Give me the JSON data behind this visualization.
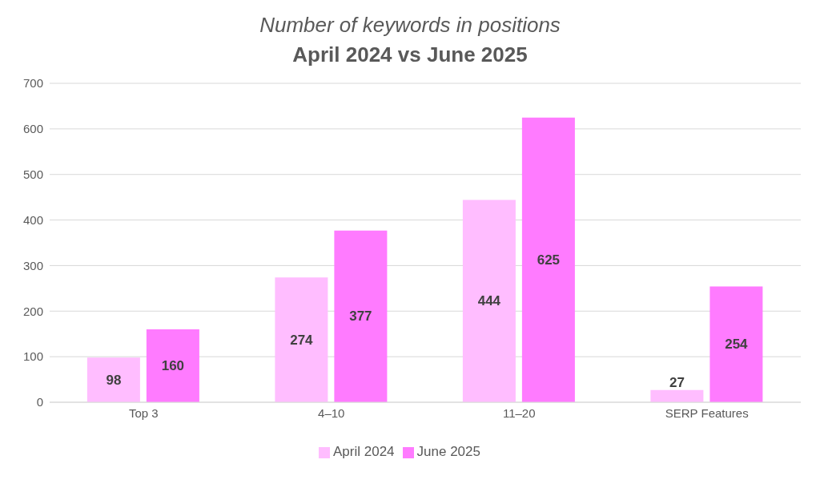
{
  "chart_data": {
    "type": "bar",
    "title": "Number of keywords in positions",
    "subtitle": "April 2024 vs June 2025",
    "categories": [
      "Top 3",
      "4–10",
      "11–20",
      "SERP Features"
    ],
    "series": [
      {
        "name": "April 2024",
        "color": "#ffbdff",
        "values": [
          98,
          274,
          444,
          27
        ]
      },
      {
        "name": "June 2025",
        "color": "#ff7bff",
        "values": [
          160,
          377,
          625,
          254
        ]
      }
    ],
    "ylim": [
      0,
      700
    ],
    "yticks": [
      0,
      100,
      200,
      300,
      400,
      500,
      600,
      700
    ],
    "grid": "y",
    "legend": "bottom",
    "data_labels": true
  }
}
